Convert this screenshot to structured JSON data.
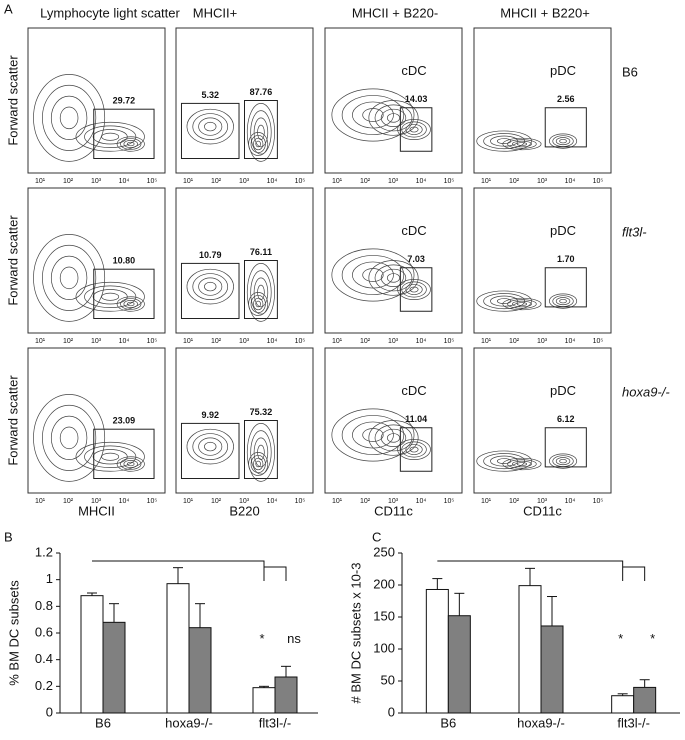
{
  "panel_letters": [
    "A",
    "B",
    "C"
  ],
  "flow": {
    "column_titles": [
      "Lymphocyte light scatter",
      "MHCII+",
      "MHCII + B220-",
      "MHCII + B220+"
    ],
    "row_labels": [
      "B6",
      "flt3l-",
      "hoxa9-/-"
    ],
    "y_label": "Forward scatter",
    "x_labels": [
      "MHCII",
      "B220",
      "CD11c",
      "CD11c"
    ],
    "x_ticks": [
      "10¹",
      "10²",
      "10³",
      "10⁴",
      "10⁵"
    ],
    "subset_labels": [
      "cDC",
      "pDC"
    ],
    "gates": [
      [
        [
          "29.72"
        ],
        [
          "5.32",
          "87.76"
        ],
        [
          "14.03"
        ],
        [
          "2.56"
        ]
      ],
      [
        [
          "10.80"
        ],
        [
          "10.79",
          "76.11"
        ],
        [
          "7.03"
        ],
        [
          "1.70"
        ]
      ],
      [
        [
          "23.09"
        ],
        [
          "9.92",
          "75.32"
        ],
        [
          "11.04"
        ],
        [
          "6.12"
        ]
      ]
    ]
  },
  "chart_data": [
    {
      "type": "bar",
      "y_label": "% BM DC  subsets",
      "categories": [
        "B6",
        "hoxa9-/-",
        "flt3l-/-"
      ],
      "series": [
        {
          "color": "#ffffff",
          "values": [
            0.88,
            0.97,
            0.19
          ],
          "errors": [
            0.02,
            0.12,
            0.01
          ]
        },
        {
          "color": "#808080",
          "values": [
            0.68,
            0.64,
            0.27
          ],
          "errors": [
            0.14,
            0.18,
            0.08
          ]
        }
      ],
      "ylim": [
        0,
        1.2
      ],
      "yticks": [
        0,
        0.2,
        0.4,
        0.6,
        0.8,
        1,
        1.2
      ],
      "annotations": [
        "*",
        "ns"
      ]
    },
    {
      "type": "bar",
      "y_label": "# BM DC subsets x 10-3",
      "categories": [
        "B6",
        "hoxa9-/-",
        "flt3l-/-"
      ],
      "series": [
        {
          "color": "#ffffff",
          "values": [
            193,
            199,
            27
          ],
          "errors": [
            17,
            27,
            3
          ]
        },
        {
          "color": "#808080",
          "values": [
            152,
            136,
            40
          ],
          "errors": [
            35,
            46,
            12
          ]
        }
      ],
      "ylim": [
        0,
        250
      ],
      "yticks": [
        0,
        50,
        100,
        150,
        200,
        250
      ],
      "annotations": [
        "*",
        "*"
      ]
    }
  ]
}
